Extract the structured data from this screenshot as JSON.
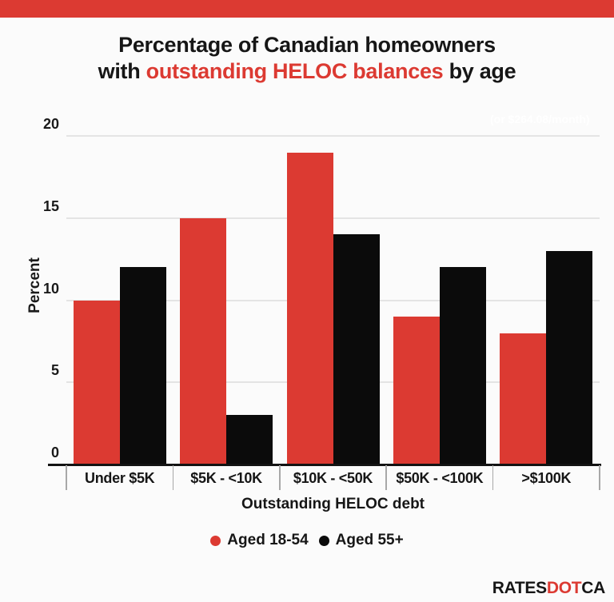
{
  "banner_color": "#dc3a32",
  "title": {
    "line1": "Percentage of Canadian homeowners",
    "line2_prefix": "with ",
    "line2_highlight": "outstanding HELOC balances",
    "line2_suffix": " by age",
    "highlight_color": "#dc3a32"
  },
  "watermark": "(or $264.08/month)",
  "chart_data": {
    "type": "bar",
    "title": "Percentage of Canadian homeowners with outstanding HELOC balances by age",
    "categories": [
      "Under $5K",
      "$5K - <10K",
      "$10K - <50K",
      "$50K - <100K",
      ">$100K"
    ],
    "series": [
      {
        "name": "Aged 18-54",
        "color": "#dc3a32",
        "values": [
          10,
          15,
          19,
          9,
          8
        ]
      },
      {
        "name": "Aged 55+",
        "color": "#0b0b0b",
        "values": [
          12,
          3,
          14,
          12,
          13
        ]
      }
    ],
    "xlabel": "Outstanding HELOC debt",
    "ylabel": "Percent",
    "ylim": [
      0,
      20
    ],
    "yticks": [
      0,
      5,
      10,
      15,
      20
    ],
    "grid": true,
    "legend_position": "bottom"
  },
  "logo": {
    "part1": "RATES",
    "part2": "DOT",
    "part3": "CA",
    "dot_color": "#dc3a32"
  }
}
